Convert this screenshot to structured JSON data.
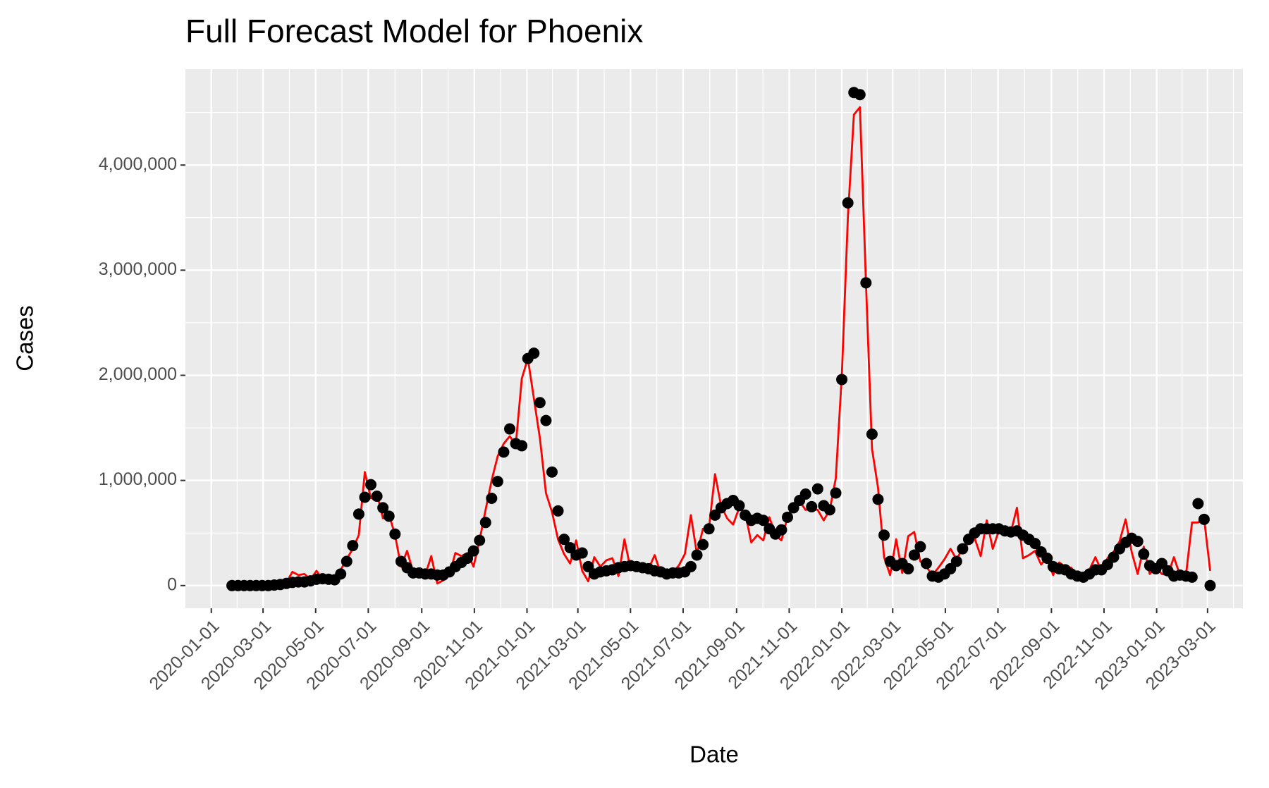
{
  "chart_data": {
    "type": "line",
    "title": "Full Forecast Model for Phoenix",
    "x_label": "Date",
    "y_label": "Cases",
    "x": [
      "2020-01-25",
      "2020-02-01",
      "2020-02-08",
      "2020-02-15",
      "2020-02-22",
      "2020-02-29",
      "2020-03-07",
      "2020-03-14",
      "2020-03-21",
      "2020-03-28",
      "2020-04-04",
      "2020-04-11",
      "2020-04-18",
      "2020-04-25",
      "2020-05-02",
      "2020-05-09",
      "2020-05-16",
      "2020-05-23",
      "2020-05-30",
      "2020-06-06",
      "2020-06-13",
      "2020-06-20",
      "2020-06-27",
      "2020-07-04",
      "2020-07-11",
      "2020-07-18",
      "2020-07-25",
      "2020-08-01",
      "2020-08-08",
      "2020-08-15",
      "2020-08-22",
      "2020-08-29",
      "2020-09-05",
      "2020-09-12",
      "2020-09-19",
      "2020-09-26",
      "2020-10-03",
      "2020-10-10",
      "2020-10-17",
      "2020-10-24",
      "2020-10-31",
      "2020-11-07",
      "2020-11-14",
      "2020-11-21",
      "2020-11-28",
      "2020-12-05",
      "2020-12-12",
      "2020-12-19",
      "2020-12-26",
      "2021-01-02",
      "2021-01-09",
      "2021-01-16",
      "2021-01-23",
      "2021-01-30",
      "2021-02-06",
      "2021-02-13",
      "2021-02-20",
      "2021-02-27",
      "2021-03-06",
      "2021-03-13",
      "2021-03-20",
      "2021-03-27",
      "2021-04-03",
      "2021-04-10",
      "2021-04-17",
      "2021-04-24",
      "2021-05-01",
      "2021-05-08",
      "2021-05-15",
      "2021-05-22",
      "2021-05-29",
      "2021-06-05",
      "2021-06-12",
      "2021-06-19",
      "2021-06-26",
      "2021-07-03",
      "2021-07-10",
      "2021-07-17",
      "2021-07-24",
      "2021-07-31",
      "2021-08-07",
      "2021-08-14",
      "2021-08-21",
      "2021-08-28",
      "2021-09-04",
      "2021-09-11",
      "2021-09-18",
      "2021-09-25",
      "2021-10-02",
      "2021-10-09",
      "2021-10-16",
      "2021-10-23",
      "2021-10-30",
      "2021-11-06",
      "2021-11-13",
      "2021-11-20",
      "2021-11-27",
      "2021-12-04",
      "2021-12-11",
      "2021-12-18",
      "2021-12-25",
      "2022-01-01",
      "2022-01-08",
      "2022-01-15",
      "2022-01-22",
      "2022-01-29",
      "2022-02-05",
      "2022-02-12",
      "2022-02-19",
      "2022-02-26",
      "2022-03-05",
      "2022-03-12",
      "2022-03-19",
      "2022-03-26",
      "2022-04-02",
      "2022-04-09",
      "2022-04-16",
      "2022-04-23",
      "2022-04-30",
      "2022-05-07",
      "2022-05-14",
      "2022-05-21",
      "2022-05-28",
      "2022-06-04",
      "2022-06-11",
      "2022-06-18",
      "2022-06-25",
      "2022-07-02",
      "2022-07-09",
      "2022-07-16",
      "2022-07-23",
      "2022-07-30",
      "2022-08-06",
      "2022-08-13",
      "2022-08-20",
      "2022-08-27",
      "2022-09-03",
      "2022-09-10",
      "2022-09-17",
      "2022-09-24",
      "2022-10-01",
      "2022-10-08",
      "2022-10-15",
      "2022-10-22",
      "2022-10-29",
      "2022-11-05",
      "2022-11-12",
      "2022-11-19",
      "2022-11-26",
      "2022-12-03",
      "2022-12-10",
      "2022-12-17",
      "2022-12-24",
      "2022-12-31",
      "2023-01-07",
      "2023-01-14",
      "2023-01-21",
      "2023-01-28",
      "2023-02-04",
      "2023-02-11",
      "2023-02-18",
      "2023-02-25",
      "2023-03-04"
    ],
    "series": [
      {
        "style": "line",
        "color": "#ff0000",
        "values": [
          0,
          0,
          0,
          0,
          0,
          0,
          0,
          5000,
          10000,
          30000,
          130000,
          100000,
          110000,
          60000,
          140000,
          60000,
          60000,
          50000,
          150000,
          250000,
          350000,
          480000,
          1080000,
          830000,
          880000,
          640000,
          680000,
          480000,
          180000,
          330000,
          130000,
          120000,
          100000,
          280000,
          20000,
          50000,
          100000,
          310000,
          280000,
          310000,
          180000,
          430000,
          720000,
          1000000,
          1230000,
          1350000,
          1420000,
          1340000,
          1970000,
          2160000,
          1780000,
          1400000,
          880000,
          700000,
          440000,
          300000,
          210000,
          430000,
          140000,
          40000,
          270000,
          180000,
          240000,
          260000,
          90000,
          440000,
          160000,
          140000,
          150000,
          160000,
          290000,
          120000,
          120000,
          130000,
          190000,
          300000,
          670000,
          300000,
          540000,
          550000,
          1060000,
          760000,
          640000,
          580000,
          740000,
          690000,
          410000,
          480000,
          430000,
          650000,
          480000,
          430000,
          650000,
          780000,
          800000,
          720000,
          730000,
          720000,
          620000,
          720000,
          1020000,
          2000000,
          3500000,
          4480000,
          4550000,
          2880000,
          1300000,
          930000,
          270000,
          100000,
          440000,
          120000,
          470000,
          510000,
          230000,
          180000,
          100000,
          170000,
          250000,
          350000,
          250000,
          350000,
          400000,
          450000,
          280000,
          620000,
          350000,
          520000,
          560000,
          510000,
          740000,
          260000,
          290000,
          330000,
          200000,
          270000,
          100000,
          220000,
          180000,
          170000,
          80000,
          90000,
          150000,
          270000,
          140000,
          260000,
          320000,
          420000,
          630000,
          320000,
          110000,
          370000,
          110000,
          180000,
          110000,
          100000,
          270000,
          100000,
          100000,
          600000,
          600000,
          640000,
          140000
        ]
      },
      {
        "style": "points",
        "color": "#000000",
        "values": [
          0,
          0,
          0,
          0,
          0,
          0,
          0,
          5000,
          10000,
          20000,
          30000,
          35000,
          35000,
          45000,
          60000,
          65000,
          60000,
          55000,
          110000,
          230000,
          380000,
          680000,
          840000,
          960000,
          850000,
          740000,
          660000,
          490000,
          230000,
          170000,
          120000,
          120000,
          110000,
          110000,
          100000,
          100000,
          130000,
          180000,
          220000,
          260000,
          330000,
          430000,
          600000,
          830000,
          990000,
          1270000,
          1490000,
          1350000,
          1330000,
          2160000,
          2210000,
          1740000,
          1570000,
          1080000,
          710000,
          440000,
          360000,
          290000,
          310000,
          180000,
          110000,
          130000,
          140000,
          150000,
          170000,
          180000,
          190000,
          180000,
          170000,
          160000,
          140000,
          130000,
          110000,
          120000,
          120000,
          130000,
          180000,
          290000,
          390000,
          540000,
          670000,
          740000,
          780000,
          810000,
          760000,
          670000,
          620000,
          640000,
          620000,
          540000,
          490000,
          530000,
          650000,
          740000,
          810000,
          870000,
          750000,
          920000,
          760000,
          720000,
          880000,
          1960000,
          3640000,
          4690000,
          4670000,
          2880000,
          1440000,
          820000,
          480000,
          230000,
          190000,
          210000,
          160000,
          290000,
          370000,
          210000,
          90000,
          80000,
          110000,
          160000,
          230000,
          350000,
          440000,
          500000,
          540000,
          540000,
          540000,
          540000,
          520000,
          510000,
          520000,
          480000,
          440000,
          400000,
          320000,
          260000,
          180000,
          160000,
          150000,
          110000,
          90000,
          80000,
          110000,
          150000,
          150000,
          200000,
          270000,
          350000,
          410000,
          450000,
          420000,
          300000,
          190000,
          160000,
          210000,
          140000,
          90000,
          100000,
          90000,
          80000,
          780000,
          630000,
          0
        ]
      }
    ],
    "xlim": [
      "2019-12-02",
      "2023-04-11"
    ],
    "xticks": [
      "2020-01-01",
      "2020-03-01",
      "2020-05-01",
      "2020-07-01",
      "2020-09-01",
      "2020-11-01",
      "2021-01-01",
      "2021-03-01",
      "2021-05-01",
      "2021-07-01",
      "2021-09-01",
      "2021-11-01",
      "2022-01-01",
      "2022-03-01",
      "2022-05-01",
      "2022-07-01",
      "2022-09-01",
      "2022-11-01",
      "2023-01-01",
      "2023-03-01"
    ],
    "ylim": [
      -216000,
      4913000
    ],
    "yticks": [
      0,
      {
        "value": 1000000,
        "label": "1,000,000"
      },
      {
        "value": 2000000,
        "label": "2,000,000"
      },
      {
        "value": 3000000,
        "label": "3,000,000"
      },
      {
        "value": 4000000,
        "label": "4,000,000"
      }
    ],
    "grid": true
  }
}
